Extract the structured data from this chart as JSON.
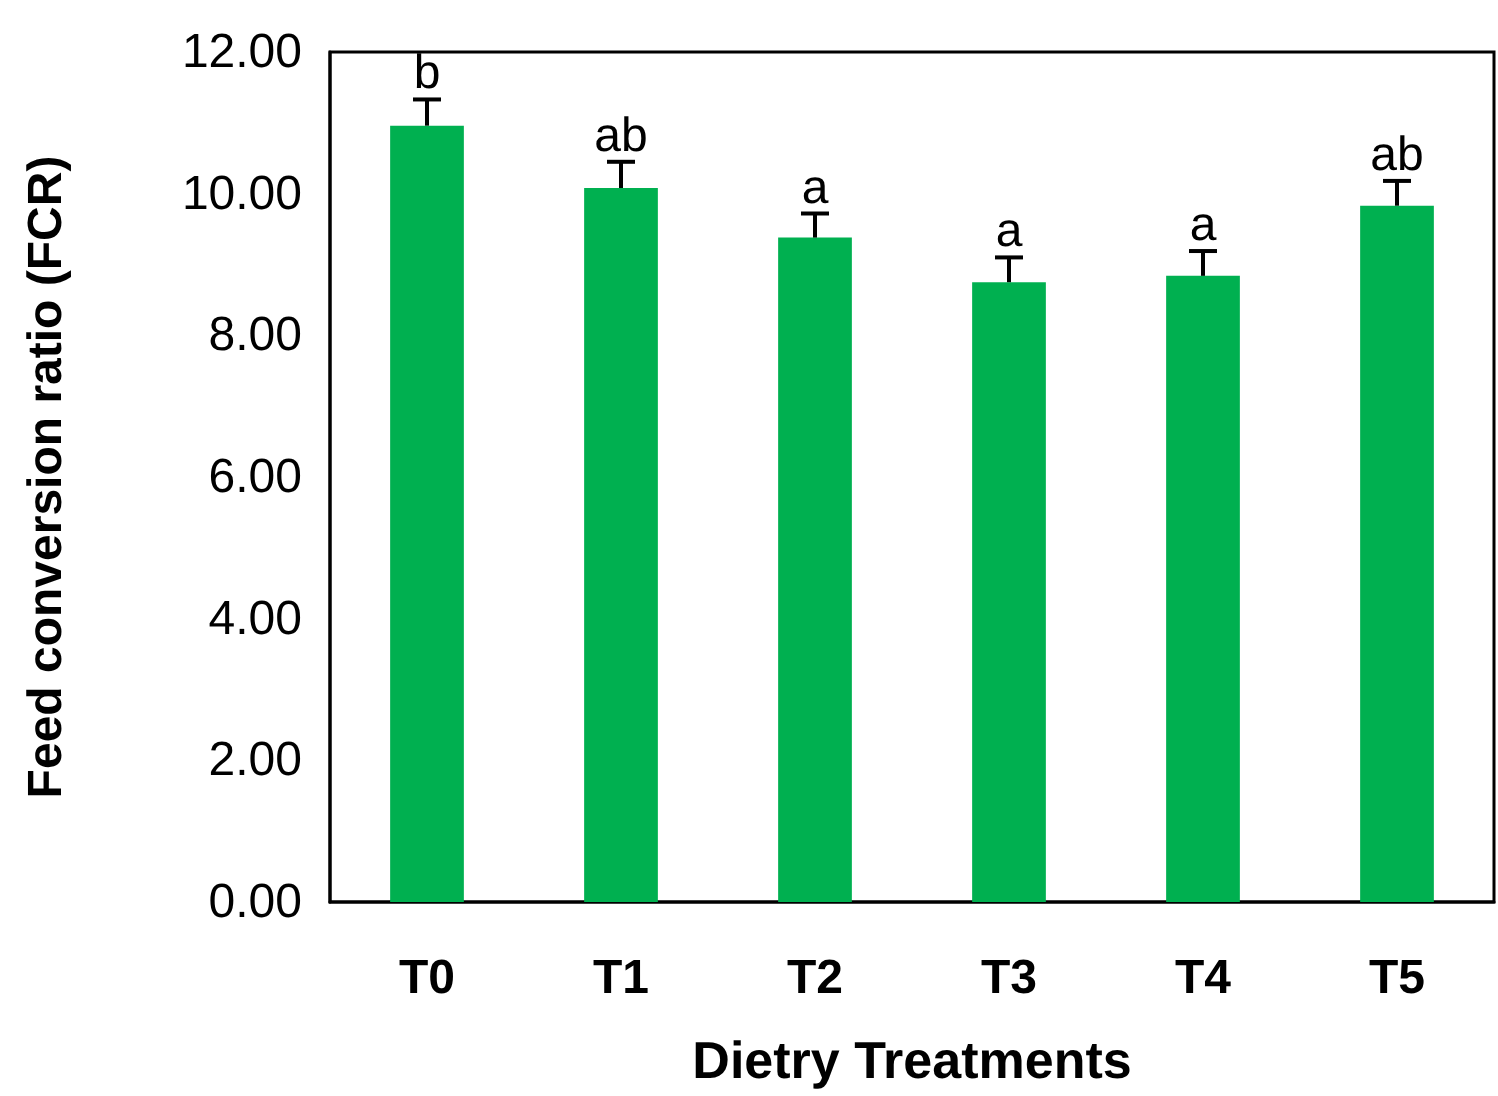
{
  "chart_data": {
    "type": "bar",
    "xlabel": "Dietry Treatments",
    "ylabel": "Feed conversion ratio (FCR)",
    "categories": [
      "T0",
      "T1",
      "T2",
      "T3",
      "T4",
      "T5"
    ],
    "values": [
      10.96,
      10.08,
      9.38,
      8.75,
      8.84,
      9.83
    ],
    "errors": [
      [
        10.96,
        11.33
      ],
      [
        10.08,
        10.45
      ],
      [
        9.38,
        9.72
      ],
      [
        8.75,
        9.1
      ],
      [
        8.84,
        9.19
      ],
      [
        9.83,
        10.18
      ]
    ],
    "color": "#00b050",
    "ylim": [
      0,
      12
    ],
    "yticks": [
      {
        "value": 0,
        "label": "0.00"
      },
      {
        "value": 2,
        "label": "2.00"
      },
      {
        "value": 4,
        "label": "4.00"
      },
      {
        "value": 6,
        "label": "6.00"
      },
      {
        "value": 8,
        "label": "8.00"
      },
      {
        "value": 10,
        "label": "10.00"
      },
      {
        "value": 12,
        "label": "12.00"
      }
    ],
    "annotations": [
      {
        "text": "b",
        "x": "T0",
        "y": 11.33
      },
      {
        "text": "ab",
        "x": "T1",
        "y": 10.45
      },
      {
        "text": "a",
        "x": "T2",
        "y": 9.72
      },
      {
        "text": "a",
        "x": "T3",
        "y": 9.1
      },
      {
        "text": "a",
        "x": "T4",
        "y": 9.19
      },
      {
        "text": "ab",
        "x": "T5",
        "y": 10.18
      }
    ],
    "grid": false
  }
}
